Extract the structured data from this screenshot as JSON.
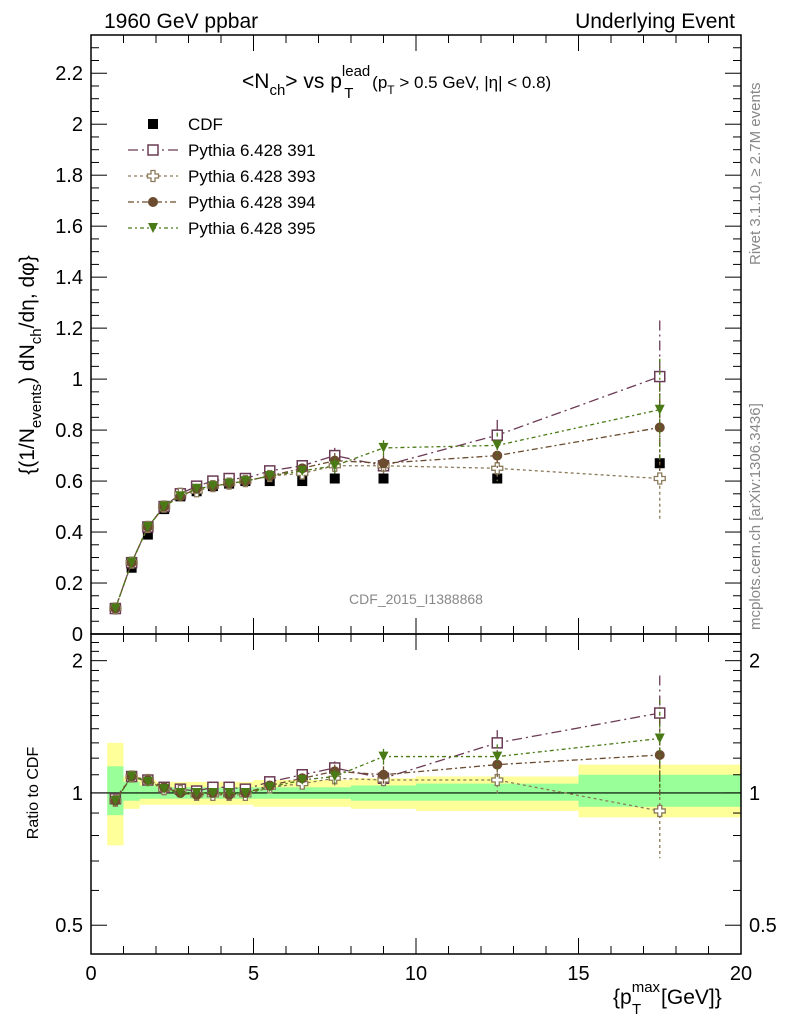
{
  "header": {
    "left": "1960 GeV ppbar",
    "right": "Underlying Event"
  },
  "title": {
    "main": "<N",
    "ch_sub": "ch",
    "vs": "> vs p",
    "lead_sup": "lead",
    "T_sub": "T",
    "cut_open": " (p",
    "cut_T": "T",
    "cut_rest": " > 0.5 GeV, |η| < 0.8)"
  },
  "ylabel_main": "{(1/N",
  "ylabel_events": "events",
  "ylabel_mid": ") dN",
  "ylabel_ch": "ch",
  "ylabel_end": "/dη, dφ}",
  "ratio_ylabel": "Ratio to CDF",
  "xlabel_open": "{p",
  "xlabel_sup": "max",
  "xlabel_sub": "T",
  "xlabel_end": " [GeV]}",
  "watermark": "CDF_2015_I1388868",
  "side_text_rivet": "Rivet 3.1.10, ≥ 2.7M events",
  "side_text_mcplots": "mcplots.cern.ch [arXiv:1306.3436]",
  "colors": {
    "cdf": "#000000",
    "p391": "#6b3b55",
    "p393": "#8b7a5a",
    "p394": "#6b4c2e",
    "p395": "#4a7a16",
    "band_inner": "#99ff99",
    "band_outer": "#ffff99"
  },
  "chart_data": [
    {
      "type": "scatter",
      "panel": "main",
      "xlim": [
        0,
        20
      ],
      "ylim": [
        0,
        2.35
      ],
      "yticks": [
        0,
        0.2,
        0.4,
        0.6,
        0.8,
        1,
        1.2,
        1.4,
        1.6,
        1.8,
        2,
        2.2
      ],
      "ytick_labels": [
        "0",
        "0.2",
        "0.4",
        "0.6",
        "0.8",
        "1",
        "1.2",
        "1.4",
        "1.6",
        "1.8",
        "2",
        "2.2"
      ],
      "x": [
        0.75,
        1.25,
        1.75,
        2.25,
        2.75,
        3.25,
        3.75,
        4.25,
        4.75,
        5.5,
        6.5,
        7.5,
        9.0,
        12.5,
        17.5
      ],
      "series": [
        {
          "name": "CDF",
          "key": "cdf",
          "marker": "filled-square",
          "values": [
            0.1,
            0.26,
            0.39,
            0.49,
            0.54,
            0.56,
            0.58,
            0.59,
            0.6,
            0.6,
            0.6,
            0.61,
            0.61,
            0.61,
            0.67
          ],
          "errors": [
            0.005,
            0.01,
            0.01,
            0.01,
            0.01,
            0.01,
            0.01,
            0.01,
            0.01,
            0.01,
            0.01,
            0.01,
            0.01,
            0.01,
            0.02
          ]
        },
        {
          "name": "Pythia 6.428 391",
          "key": "p391",
          "marker": "open-square",
          "dash": "10,4,2,4",
          "values": [
            0.1,
            0.28,
            0.42,
            0.5,
            0.55,
            0.58,
            0.6,
            0.61,
            0.61,
            0.64,
            0.66,
            0.7,
            0.66,
            0.78,
            1.01
          ],
          "errors": [
            0.005,
            0.01,
            0.01,
            0.01,
            0.01,
            0.01,
            0.01,
            0.01,
            0.01,
            0.01,
            0.015,
            0.03,
            0.03,
            0.06,
            0.22
          ]
        },
        {
          "name": "Pythia 6.428 393",
          "key": "p393",
          "marker": "open-cross",
          "dash": "3,3",
          "values": [
            0.1,
            0.28,
            0.42,
            0.5,
            0.55,
            0.56,
            0.58,
            0.59,
            0.6,
            0.62,
            0.63,
            0.66,
            0.66,
            0.65,
            0.61
          ],
          "errors": [
            0.005,
            0.01,
            0.01,
            0.01,
            0.01,
            0.01,
            0.01,
            0.01,
            0.01,
            0.01,
            0.015,
            0.03,
            0.03,
            0.05,
            0.16
          ]
        },
        {
          "name": "Pythia 6.428 394",
          "key": "p394",
          "marker": "filled-circle",
          "dash": "6,3,2,3",
          "values": [
            0.1,
            0.28,
            0.42,
            0.5,
            0.54,
            0.57,
            0.58,
            0.59,
            0.6,
            0.62,
            0.65,
            0.68,
            0.67,
            0.7,
            0.81
          ],
          "errors": [
            0.005,
            0.01,
            0.01,
            0.01,
            0.01,
            0.01,
            0.01,
            0.01,
            0.01,
            0.01,
            0.015,
            0.03,
            0.03,
            0.05,
            0.17
          ]
        },
        {
          "name": "Pythia 6.428 395",
          "key": "p395",
          "marker": "filled-triangle-down",
          "dash": "4,3,2,3",
          "values": [
            0.1,
            0.28,
            0.42,
            0.5,
            0.54,
            0.57,
            0.58,
            0.59,
            0.6,
            0.62,
            0.64,
            0.66,
            0.73,
            0.74,
            0.88
          ],
          "errors": [
            0.005,
            0.01,
            0.01,
            0.01,
            0.01,
            0.01,
            0.01,
            0.01,
            0.01,
            0.01,
            0.015,
            0.03,
            0.03,
            0.05,
            0.2
          ]
        }
      ]
    },
    {
      "type": "scatter",
      "panel": "ratio",
      "scale": "log",
      "xlim": [
        0,
        20
      ],
      "ylim": [
        0.43,
        2.3
      ],
      "yticks": [
        0.5,
        1,
        2
      ],
      "ytick_labels": [
        "0.5",
        "1",
        "2"
      ],
      "xticks": [
        0,
        5,
        10,
        15,
        20
      ],
      "xtick_labels": [
        "0",
        "5",
        "10",
        "15",
        "20"
      ],
      "band_bins": [
        {
          "lo": 0.5,
          "hi": 1.0,
          "inner": [
            0.89,
            1.15
          ],
          "outer": [
            0.76,
            1.3
          ]
        },
        {
          "lo": 1.0,
          "hi": 1.5,
          "inner": [
            0.96,
            1.06
          ],
          "outer": [
            0.92,
            1.09
          ]
        },
        {
          "lo": 1.5,
          "hi": 2.0,
          "inner": [
            0.97,
            1.04
          ],
          "outer": [
            0.94,
            1.07
          ]
        },
        {
          "lo": 2.0,
          "hi": 5.0,
          "inner": [
            0.97,
            1.03
          ],
          "outer": [
            0.94,
            1.06
          ]
        },
        {
          "lo": 5.0,
          "hi": 8.0,
          "inner": [
            0.97,
            1.03
          ],
          "outer": [
            0.93,
            1.07
          ]
        },
        {
          "lo": 8.0,
          "hi": 10.0,
          "inner": [
            0.96,
            1.04
          ],
          "outer": [
            0.92,
            1.08
          ]
        },
        {
          "lo": 10.0,
          "hi": 15.0,
          "inner": [
            0.96,
            1.05
          ],
          "outer": [
            0.91,
            1.09
          ]
        },
        {
          "lo": 15.0,
          "hi": 20.0,
          "inner": [
            0.93,
            1.1
          ],
          "outer": [
            0.88,
            1.16
          ]
        }
      ],
      "x": [
        0.75,
        1.25,
        1.75,
        2.25,
        2.75,
        3.25,
        3.75,
        4.25,
        4.75,
        5.5,
        6.5,
        7.5,
        9.0,
        12.5,
        17.5
      ],
      "series": [
        {
          "name": "Pythia 6.428 391",
          "key": "p391",
          "marker": "open-square",
          "dash": "10,4,2,4",
          "values": [
            0.97,
            1.09,
            1.07,
            1.03,
            1.02,
            1.01,
            1.03,
            1.03,
            1.02,
            1.06,
            1.1,
            1.14,
            1.08,
            1.3,
            1.52
          ],
          "errors": [
            0.02,
            0.01,
            0.01,
            0.01,
            0.01,
            0.01,
            0.01,
            0.01,
            0.01,
            0.01,
            0.02,
            0.04,
            0.05,
            0.09,
            0.33
          ]
        },
        {
          "name": "Pythia 6.428 393",
          "key": "p393",
          "marker": "open-cross",
          "dash": "3,3",
          "values": [
            0.96,
            1.09,
            1.07,
            1.02,
            1.01,
            0.99,
            0.99,
            0.99,
            0.99,
            1.03,
            1.05,
            1.08,
            1.07,
            1.07,
            0.91
          ],
          "errors": [
            0.02,
            0.01,
            0.01,
            0.01,
            0.01,
            0.01,
            0.01,
            0.01,
            0.01,
            0.01,
            0.02,
            0.04,
            0.05,
            0.08,
            0.2
          ]
        },
        {
          "name": "Pythia 6.428 394",
          "key": "p394",
          "marker": "filled-circle",
          "dash": "6,3,2,3",
          "values": [
            0.96,
            1.09,
            1.07,
            1.03,
            1.0,
            0.99,
            1.0,
            0.99,
            1.0,
            1.04,
            1.08,
            1.12,
            1.1,
            1.16,
            1.22
          ],
          "errors": [
            0.02,
            0.01,
            0.01,
            0.01,
            0.01,
            0.01,
            0.01,
            0.01,
            0.01,
            0.01,
            0.02,
            0.04,
            0.05,
            0.08,
            0.25
          ]
        },
        {
          "name": "Pythia 6.428 395",
          "key": "p395",
          "marker": "filled-triangle-down",
          "dash": "4,3,2,3",
          "values": [
            0.96,
            1.09,
            1.06,
            1.02,
            1.0,
            1.0,
            1.0,
            1.0,
            1.0,
            1.03,
            1.07,
            1.09,
            1.21,
            1.21,
            1.33
          ],
          "errors": [
            0.02,
            0.01,
            0.01,
            0.01,
            0.01,
            0.01,
            0.01,
            0.01,
            0.01,
            0.01,
            0.02,
            0.04,
            0.05,
            0.08,
            0.3
          ]
        }
      ]
    }
  ]
}
